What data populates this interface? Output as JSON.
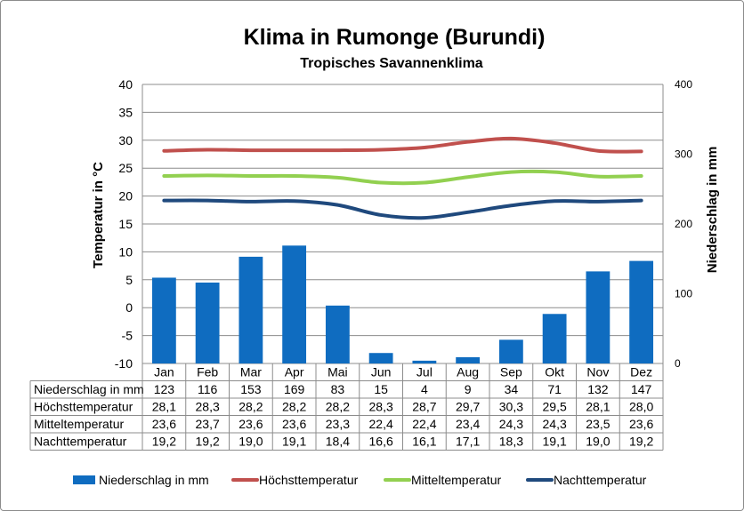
{
  "chart_data": {
    "type": "bar+line",
    "title": "Klima in Rumonge (Burundi)",
    "subtitle": "Tropisches Savannenklima",
    "ylabel_left": "Temperatur in °C",
    "ylabel_right": "Niederschlag in mm",
    "ylim_left": [
      -10,
      40
    ],
    "ylim_right": [
      0,
      400
    ],
    "yticks_left": [
      -10,
      -5,
      0,
      5,
      10,
      15,
      20,
      25,
      30,
      35,
      40
    ],
    "yticks_right": [
      0,
      100,
      200,
      300,
      400
    ],
    "grid": true,
    "legend_position": "bottom",
    "categories": [
      "Jan",
      "Feb",
      "Mar",
      "Apr",
      "Mai",
      "Jun",
      "Jul",
      "Aug",
      "Sep",
      "Okt",
      "Nov",
      "Dez"
    ],
    "series": [
      {
        "name": "Niederschlag in mm",
        "type": "bar",
        "axis": "right",
        "color": "#0f6cc0",
        "values": [
          123,
          116,
          153,
          169,
          83,
          15,
          4,
          9,
          34,
          71,
          132,
          147
        ],
        "labels": [
          "123",
          "116",
          "153",
          "169",
          "83",
          "15",
          "4",
          "9",
          "34",
          "71",
          "132",
          "147"
        ]
      },
      {
        "name": "Höchsttemperatur",
        "type": "line",
        "axis": "left",
        "color": "#c0504d",
        "values": [
          28.1,
          28.3,
          28.2,
          28.2,
          28.2,
          28.3,
          28.7,
          29.7,
          30.3,
          29.5,
          28.1,
          28.0
        ],
        "labels": [
          "28,1",
          "28,3",
          "28,2",
          "28,2",
          "28,2",
          "28,3",
          "28,7",
          "29,7",
          "30,3",
          "29,5",
          "28,1",
          "28,0"
        ]
      },
      {
        "name": "Mitteltemperatur",
        "type": "line",
        "axis": "left",
        "color": "#92d050",
        "values": [
          23.6,
          23.7,
          23.6,
          23.6,
          23.3,
          22.4,
          22.4,
          23.4,
          24.3,
          24.3,
          23.5,
          23.6
        ],
        "labels": [
          "23,6",
          "23,7",
          "23,6",
          "23,6",
          "23,3",
          "22,4",
          "22,4",
          "23,4",
          "24,3",
          "24,3",
          "23,5",
          "23,6"
        ]
      },
      {
        "name": "Nachttemperatur",
        "type": "line",
        "axis": "left",
        "color": "#1f497d",
        "values": [
          19.2,
          19.2,
          19.0,
          19.1,
          18.4,
          16.6,
          16.1,
          17.1,
          18.3,
          19.1,
          19.0,
          19.2
        ],
        "labels": [
          "19,2",
          "19,2",
          "19,0",
          "19,1",
          "18,4",
          "16,6",
          "16,1",
          "17,1",
          "18,3",
          "19,1",
          "19,0",
          "19,2"
        ]
      }
    ]
  }
}
